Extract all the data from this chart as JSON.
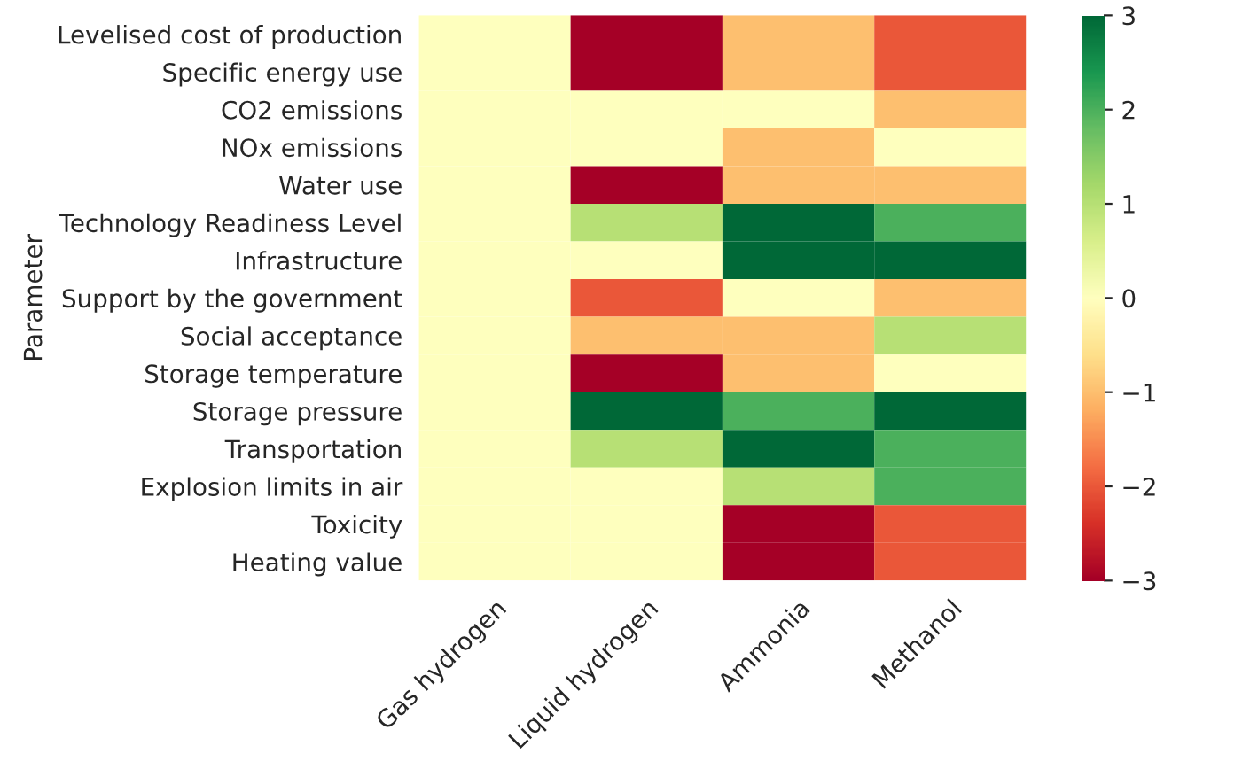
{
  "chart_data": {
    "type": "heatmap",
    "ylabel": "Parameter",
    "categories": [
      "Gas hydrogen",
      "Liquid hydrogen",
      "Ammonia",
      "Methanol"
    ],
    "y_categories": [
      "Levelised cost of production",
      "Specific energy use",
      "CO2 emissions",
      "NOx emissions",
      "Water use",
      "Technology Readiness Level",
      "Infrastructure",
      "Support by the government",
      "Social acceptance",
      "Storage temperature",
      "Storage pressure",
      "Transportation",
      "Explosion limits in air",
      "Toxicity",
      "Heating value"
    ],
    "cells": [
      [
        0,
        -3,
        -1,
        -2
      ],
      [
        0,
        -3,
        -1,
        -2
      ],
      [
        0,
        0,
        0,
        -1
      ],
      [
        0,
        0,
        -1,
        0
      ],
      [
        0,
        -3,
        -1,
        -1
      ],
      [
        0,
        1,
        3,
        2
      ],
      [
        0,
        0,
        3,
        3
      ],
      [
        0,
        -2,
        0,
        -1
      ],
      [
        0,
        -1,
        -1,
        1
      ],
      [
        0,
        -3,
        -1,
        0
      ],
      [
        0,
        3,
        2,
        3
      ],
      [
        0,
        1,
        3,
        2
      ],
      [
        0,
        0,
        1,
        2
      ],
      [
        0,
        0,
        -3,
        -2
      ],
      [
        0,
        0,
        -3,
        -2
      ]
    ],
    "clim": [
      -3,
      3
    ],
    "cticks": [
      {
        "value": -3,
        "label": "−3"
      },
      {
        "value": -2,
        "label": "−2"
      },
      {
        "value": -1,
        "label": "−1"
      },
      0,
      1,
      2,
      3
    ]
  }
}
